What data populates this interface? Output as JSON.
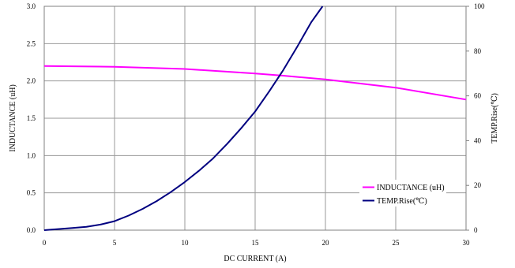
{
  "chart_data": {
    "type": "line",
    "title": "",
    "xlabel": "DC CURRENT (A)",
    "ylabel_left": "INDUCTANCE (uH)",
    "ylabel_right": "TEMP.Rise(℃)",
    "xlim": [
      0,
      30
    ],
    "ylim_left": [
      0,
      3.0
    ],
    "ylim_right": [
      0,
      100
    ],
    "x_ticks": [
      "0",
      "5",
      "10",
      "15",
      "20",
      "25",
      "30"
    ],
    "y_left_ticks": [
      "0.0",
      "0.5",
      "1.0",
      "1.5",
      "2.0",
      "2.5",
      "3.0"
    ],
    "y_right_ticks": [
      "0",
      "20",
      "40",
      "60",
      "80",
      "100"
    ],
    "grid": true,
    "legend_position": "bottom-right",
    "colors": {
      "inductance": "#ff00ff",
      "temp": "#000080"
    },
    "series": [
      {
        "name": "INDUCTANCE (uH)",
        "axis": "left",
        "x": [
          0,
          5,
          10,
          15,
          17,
          20,
          25,
          30
        ],
        "values": [
          2.2,
          2.19,
          2.16,
          2.1,
          2.07,
          2.02,
          1.91,
          1.75
        ]
      },
      {
        "name": "TEMP.Rise(℃)",
        "axis": "right",
        "x": [
          0,
          1,
          2,
          3,
          4,
          5,
          6,
          7,
          8,
          9,
          10,
          11,
          12,
          13,
          14,
          15,
          16,
          17,
          18,
          19,
          19.8
        ],
        "values": [
          0,
          0.5,
          1,
          1.5,
          2.5,
          4,
          6.5,
          9.5,
          13,
          17,
          21.5,
          26.5,
          32,
          38.5,
          45.5,
          53,
          62,
          71.5,
          82,
          93,
          100
        ]
      }
    ]
  }
}
